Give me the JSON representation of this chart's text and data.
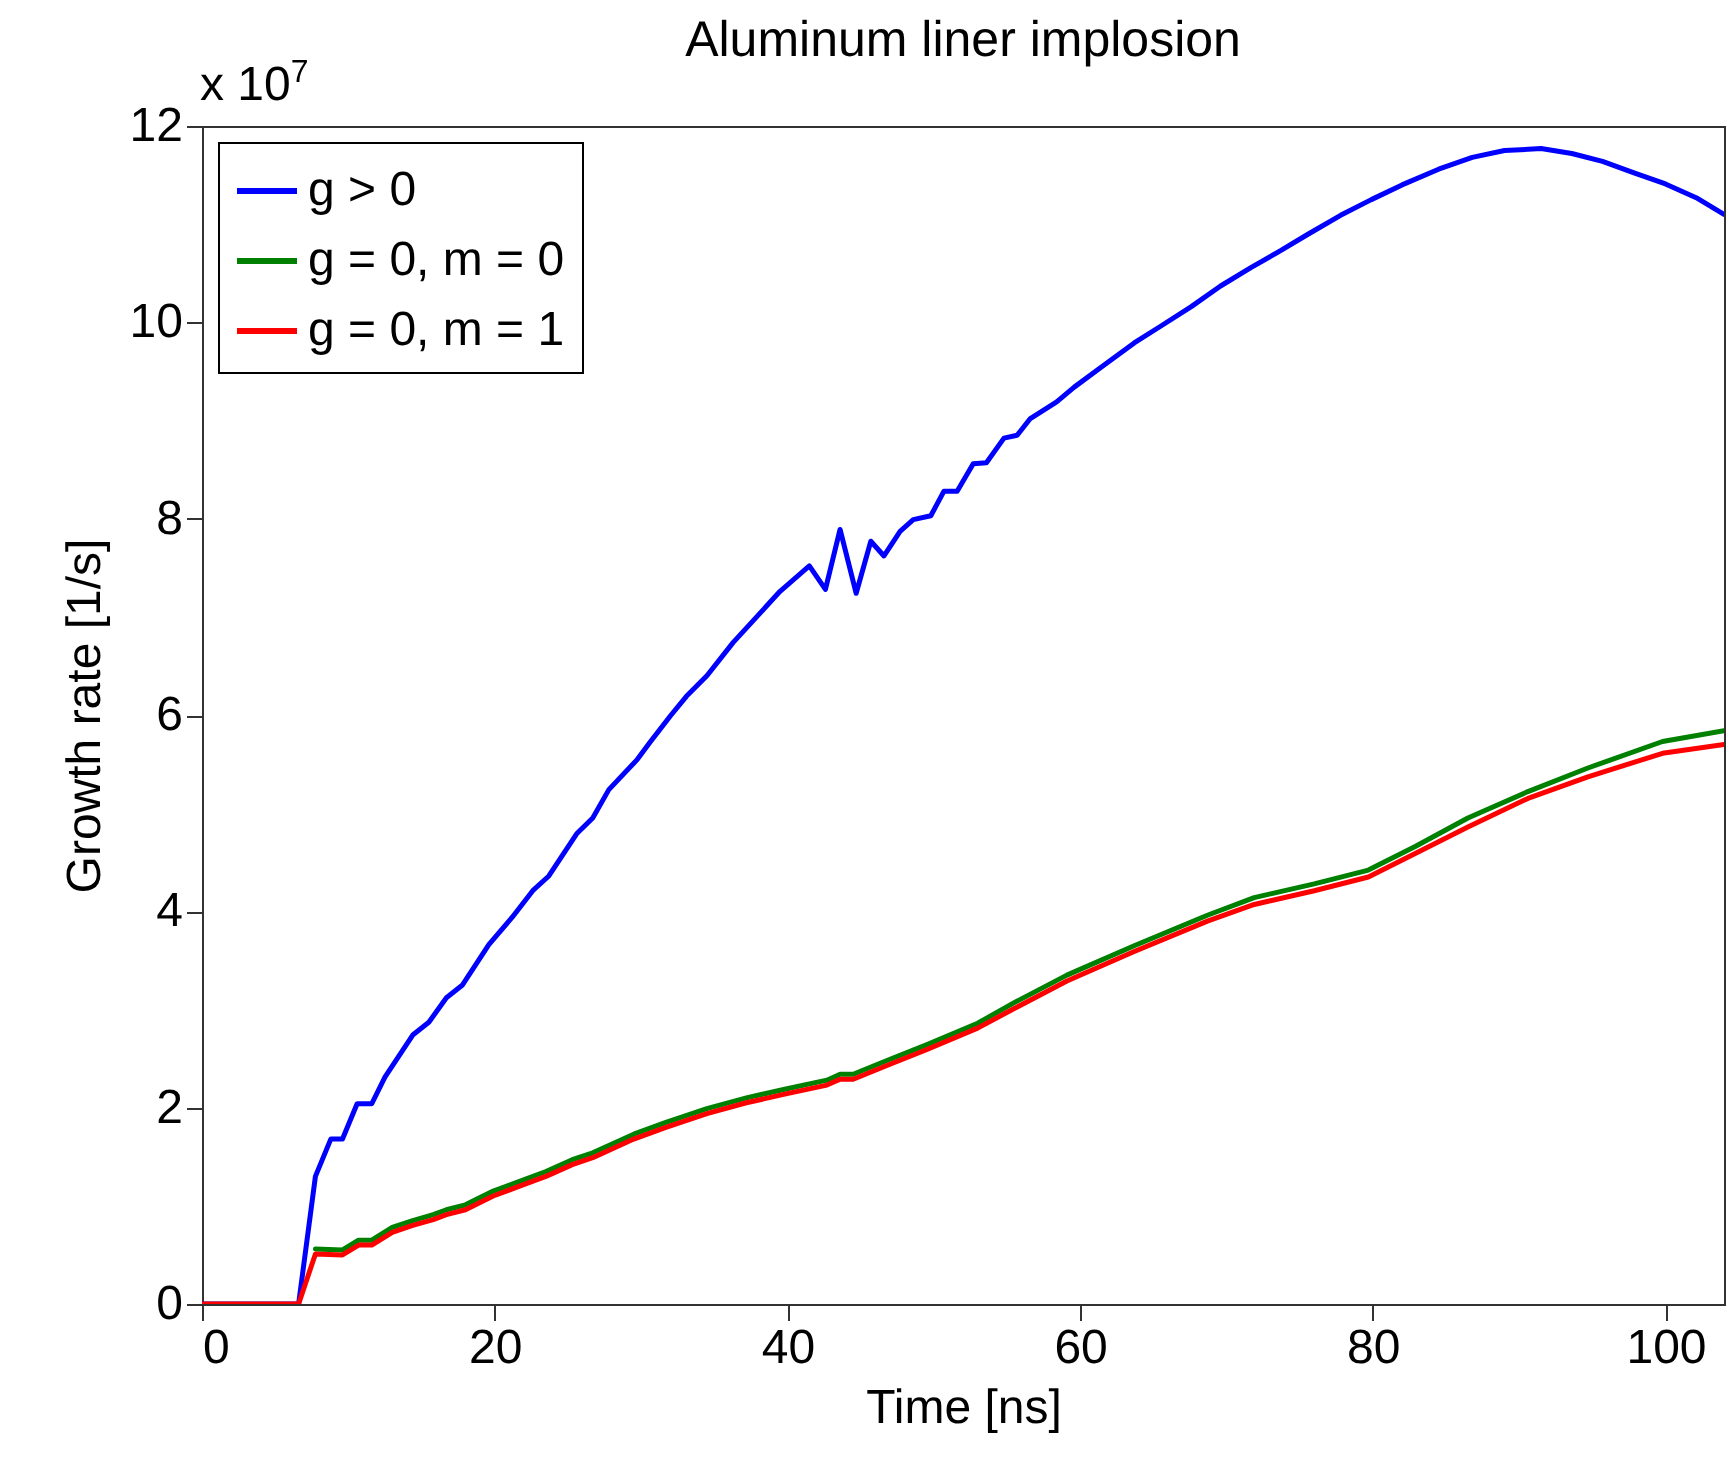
{
  "chart_data": {
    "type": "line",
    "title": "Aluminum liner implosion",
    "xlabel": "Time [ns]",
    "ylabel": "Growth rate [1/s]",
    "annotations": [
      "x 10$^{7}$"
    ],
    "xlim": [
      0,
      104
    ],
    "ylim": [
      0,
      12
    ],
    "xticks": [
      0,
      20,
      40,
      60,
      80,
      100
    ],
    "yticks": [
      0,
      2,
      4,
      6,
      8,
      10,
      12
    ],
    "grid": false,
    "legend": "top left",
    "line_style": "solid",
    "series": [
      {
        "name": "g > 0",
        "color": "#0000ff",
        "x": [
          0,
          6.6,
          7.75,
          8.8,
          9.6,
          10.6,
          11.6,
          12.5,
          14.4,
          15.5,
          16.7,
          17.8,
          19.6,
          21.2,
          22.6,
          23.7,
          25.6,
          26.7,
          27.8,
          29.7,
          30.6,
          32.0,
          33.1,
          34.5,
          36.3,
          39.5,
          41.5,
          42.6,
          43.6,
          44.7,
          45.7,
          46.6,
          47.7,
          48.6,
          49.8,
          50.7,
          51.6,
          52.7,
          53.6,
          54.8,
          55.7,
          56.6,
          58.4,
          59.6,
          61.6,
          63.7,
          65.5,
          67.6,
          69.6,
          71.7,
          73.7,
          75.6,
          77.8,
          79.9,
          82.0,
          84.5,
          86.8,
          89.0,
          91.5,
          93.6,
          95.7,
          97.9,
          100.0,
          102.1,
          104
        ],
        "values": [
          0,
          0,
          1.3,
          1.68,
          1.68,
          2.04,
          2.04,
          2.31,
          2.74,
          2.87,
          3.12,
          3.25,
          3.66,
          3.94,
          4.21,
          4.36,
          4.79,
          4.95,
          5.24,
          5.54,
          5.72,
          5.99,
          6.19,
          6.4,
          6.74,
          7.26,
          7.52,
          7.28,
          7.89,
          7.24,
          7.77,
          7.62,
          7.87,
          7.99,
          8.03,
          8.28,
          8.28,
          8.56,
          8.57,
          8.82,
          8.85,
          9.02,
          9.19,
          9.34,
          9.56,
          9.79,
          9.96,
          10.16,
          10.37,
          10.56,
          10.73,
          10.9,
          11.09,
          11.25,
          11.4,
          11.56,
          11.68,
          11.75,
          11.77,
          11.72,
          11.64,
          11.52,
          11.41,
          11.27,
          11.1
        ]
      },
      {
        "name": "g = 0, m = 0",
        "color": "#008000",
        "x": [
          7.75,
          9.6,
          10.7,
          11.6,
          13.0,
          14.4,
          15.8,
          16.7,
          18.0,
          19.9,
          21.7,
          23.5,
          25.3,
          26.7,
          29.5,
          31.7,
          34.5,
          37.2,
          39.9,
          42.7,
          43.6,
          44.5,
          46.8,
          49.5,
          53.0,
          55.5,
          59.1,
          63.7,
          68.7,
          71.9,
          76.0,
          79.7,
          82.9,
          86.5,
          90.6,
          94.7,
          99.8,
          104
        ],
        "values": [
          0.56,
          0.55,
          0.65,
          0.65,
          0.78,
          0.85,
          0.91,
          0.96,
          1.01,
          1.15,
          1.25,
          1.35,
          1.47,
          1.54,
          1.73,
          1.85,
          1.99,
          2.1,
          2.19,
          2.28,
          2.34,
          2.34,
          2.48,
          2.64,
          2.86,
          3.07,
          3.35,
          3.65,
          3.96,
          4.14,
          4.28,
          4.42,
          4.66,
          4.95,
          5.22,
          5.46,
          5.73,
          5.84
        ]
      },
      {
        "name": "g = 0, m = 1",
        "color": "#ff0000",
        "x": [
          0,
          6.6,
          7.75,
          9.6,
          10.7,
          11.6,
          13.0,
          14.4,
          15.8,
          16.7,
          18.0,
          19.9,
          21.7,
          23.5,
          25.3,
          26.7,
          29.5,
          31.7,
          34.5,
          37.2,
          39.9,
          42.7,
          43.6,
          44.5,
          46.8,
          49.5,
          53.0,
          55.5,
          59.1,
          63.7,
          68.7,
          71.9,
          76.0,
          79.7,
          82.9,
          86.5,
          90.6,
          94.7,
          99.8,
          104
        ],
        "values": [
          0,
          0,
          0.51,
          0.5,
          0.6,
          0.6,
          0.73,
          0.8,
          0.86,
          0.91,
          0.96,
          1.1,
          1.2,
          1.3,
          1.42,
          1.49,
          1.68,
          1.8,
          1.94,
          2.05,
          2.14,
          2.23,
          2.29,
          2.29,
          2.43,
          2.59,
          2.81,
          3.01,
          3.29,
          3.59,
          3.9,
          4.07,
          4.21,
          4.35,
          4.59,
          4.86,
          5.15,
          5.37,
          5.61,
          5.7
        ]
      }
    ]
  }
}
